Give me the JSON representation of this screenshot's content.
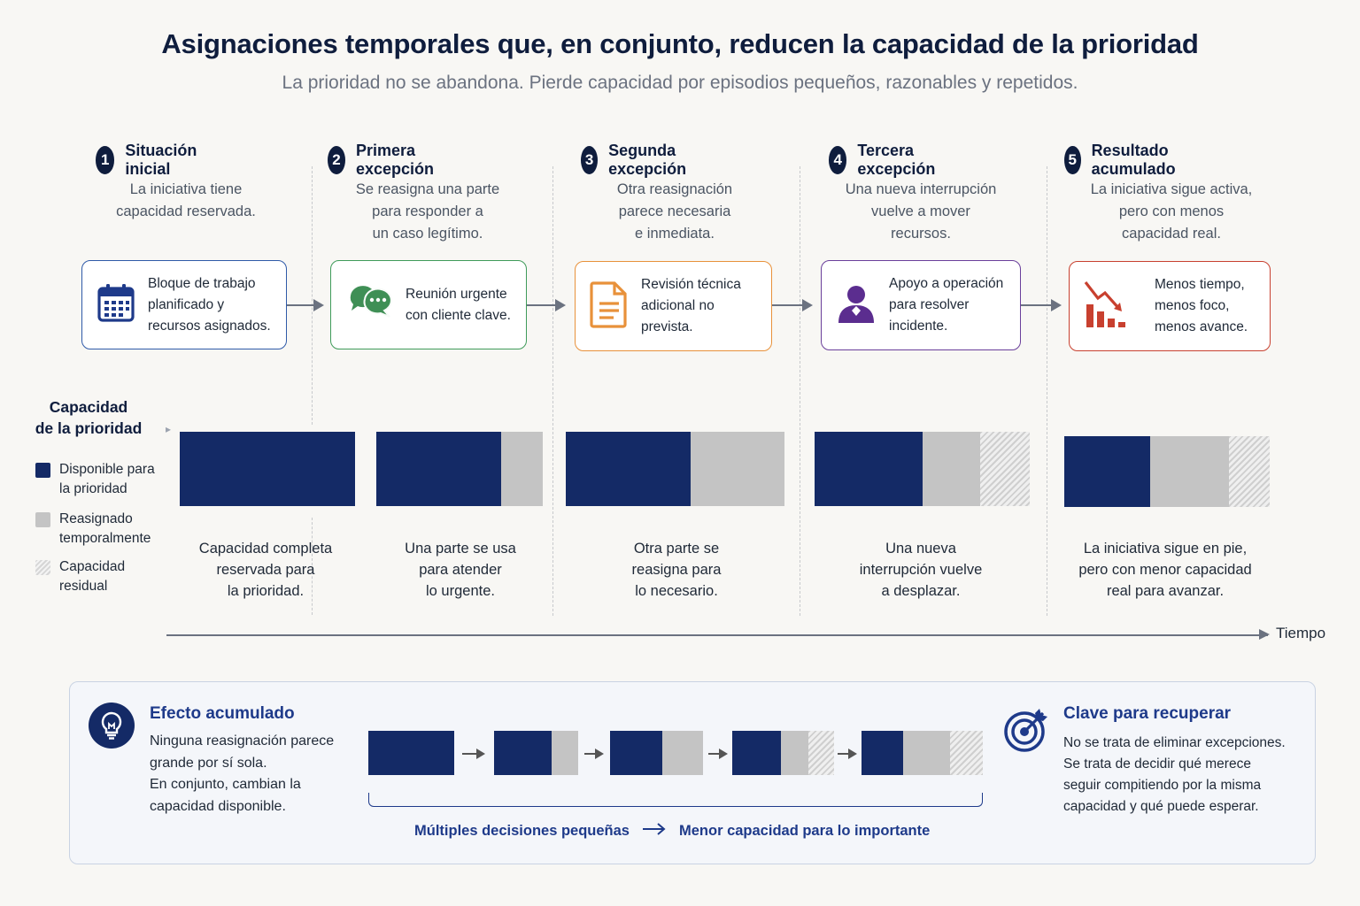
{
  "header": {
    "title": "Asignaciones temporales que, en conjunto, reducen la capacidad de la prioridad",
    "subtitle": "La prioridad no se abandona. Pierde capacidad por episodios pequeños, razonables y repetidos."
  },
  "steps": [
    {
      "num": "1",
      "title": "Situación inicial",
      "desc": [
        "La iniciativa tiene",
        "capacidad reservada."
      ],
      "card": [
        "Bloque de trabajo",
        "planificado y",
        "recursos asignados."
      ],
      "icon": "calendar-icon",
      "color": "#2f5aa8"
    },
    {
      "num": "2",
      "title": "Primera excepción",
      "desc": [
        "Se reasigna una parte",
        "para responder a",
        "un caso legítimo."
      ],
      "card": [
        "Reunión urgente",
        "con cliente clave."
      ],
      "icon": "chat-bubbles-icon",
      "color": "#3f9b5a"
    },
    {
      "num": "3",
      "title": "Segunda excepción",
      "desc": [
        "Otra reasignación",
        "parece necesaria",
        "e inmediata."
      ],
      "card": [
        "Revisión técnica",
        "adicional no",
        "prevista."
      ],
      "icon": "document-icon",
      "color": "#e8913a"
    },
    {
      "num": "4",
      "title": "Tercera excepción",
      "desc": [
        "Una nueva interrupción",
        "vuelve a mover",
        "recursos."
      ],
      "card": [
        "Apoyo a operación",
        "para resolver",
        "incidente."
      ],
      "icon": "user-icon",
      "color": "#6a3f9b"
    },
    {
      "num": "5",
      "title": "Resultado acumulado",
      "desc": [
        "La iniciativa sigue activa,",
        "pero con menos",
        "capacidad real."
      ],
      "card": [
        "Menos tiempo,",
        "menos foco,",
        "menos avance."
      ],
      "icon": "declining-chart-icon",
      "color": "#c8402f"
    }
  ],
  "legend": {
    "title": [
      "Capacidad",
      "de la prioridad"
    ],
    "items": [
      {
        "label": [
          "Disponible para",
          "la prioridad"
        ],
        "swatch": "navy"
      },
      {
        "label": [
          "Reasignado",
          "temporalmente"
        ],
        "swatch": "gray"
      },
      {
        "label": [
          "Capacidad",
          "residual"
        ],
        "swatch": "hatch"
      }
    ]
  },
  "bars": [
    {
      "available": 1.0,
      "reassigned": 0.0,
      "residual": 0.0,
      "caption": [
        "Capacidad completa",
        "reservada para",
        "la prioridad."
      ]
    },
    {
      "available": 0.75,
      "reassigned": 0.25,
      "residual": 0.0,
      "caption": [
        "Una parte se usa",
        "para atender",
        "lo urgente."
      ]
    },
    {
      "available": 0.57,
      "reassigned": 0.43,
      "residual": 0.0,
      "caption": [
        "Otra parte se",
        "reasigna para",
        "lo necesario."
      ]
    },
    {
      "available": 0.5,
      "reassigned": 0.27,
      "residual": 0.23,
      "caption": [
        "Una nueva",
        "interrupción vuelve",
        "a desplazar."
      ]
    },
    {
      "available": 0.42,
      "reassigned": 0.38,
      "residual": 0.2,
      "caption": [
        "La iniciativa sigue en pie,",
        "pero con menor capacidad",
        "real para avanzar."
      ]
    }
  ],
  "axis": {
    "label": "Tiempo"
  },
  "summary": {
    "effect_title": "Efecto acumulado",
    "effect_text": [
      "Ninguna reasignación parece",
      "grande por sí sola.",
      "En conjunto, cambian la",
      "capacidad disponible."
    ],
    "mini_bars": [
      {
        "available": 1.0,
        "reassigned": 0.0,
        "residual": 0.0
      },
      {
        "available": 0.68,
        "reassigned": 0.32,
        "residual": 0.0
      },
      {
        "available": 0.56,
        "reassigned": 0.44,
        "residual": 0.0
      },
      {
        "available": 0.48,
        "reassigned": 0.27,
        "residual": 0.25
      },
      {
        "available": 0.34,
        "reassigned": 0.39,
        "residual": 0.27
      }
    ],
    "bottom_left": "Múltiples decisiones pequeñas",
    "bottom_right": "Menor capacidad para lo importante",
    "key_title": "Clave para recuperar",
    "key_text": [
      "No se trata de eliminar excepciones.",
      "Se trata de decidir qué merece",
      "seguir compitiendo por la misma",
      "capacidad y qué puede esperar."
    ]
  },
  "colors": {
    "navy": "#142a66",
    "gray": "#c4c4c4",
    "accent": "#1e3a8a"
  }
}
